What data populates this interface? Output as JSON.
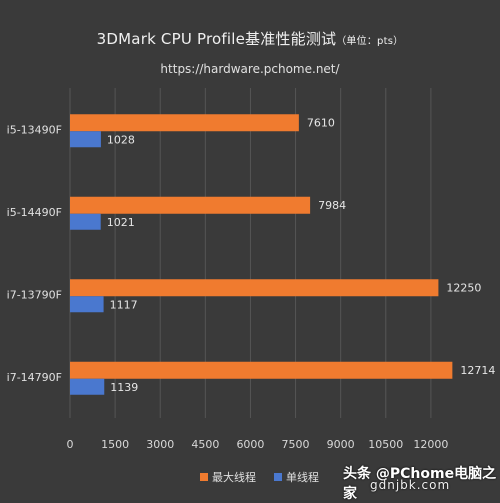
{
  "header": {
    "title": "3DMark CPU Profile基准性能测试",
    "unit": "（单位：pts）",
    "url": "https://hardware.pchome.net/"
  },
  "watermark": {
    "line1": "头条 @PChome电脑之家",
    "line2": "gdnjbk.com"
  },
  "colors": {
    "multi": "#f07b2f",
    "single": "#4a78cf",
    "grid": "#555555",
    "background": "#3a3a3a"
  },
  "chart_data": {
    "type": "bar",
    "orientation": "horizontal",
    "categories": [
      "i5-13490F",
      "i5-14490F",
      "i7-13790F",
      "i7-14790F"
    ],
    "series": [
      {
        "name": "最大线程",
        "values": [
          7610,
          7984,
          12250,
          12714
        ]
      },
      {
        "name": "单线程",
        "values": [
          1028,
          1021,
          1117,
          1139
        ]
      }
    ],
    "xlim": [
      0,
      13500
    ],
    "xticks": [
      0,
      1500,
      3000,
      4500,
      6000,
      7500,
      9000,
      10500,
      12000
    ],
    "grid": true,
    "legend": "bottom"
  }
}
